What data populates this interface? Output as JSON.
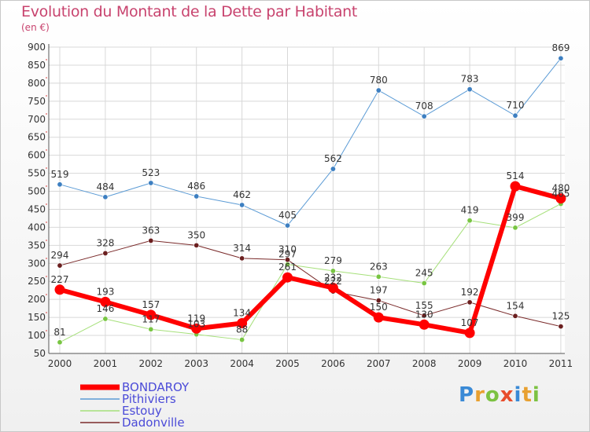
{
  "chart_data": {
    "type": "line",
    "title": "Evolution du Montant de la Dette par Habitant",
    "subtitle": "(en €)",
    "x": [
      "2000",
      "2001",
      "2002",
      "2003",
      "2004",
      "2005",
      "2006",
      "2007",
      "2008",
      "2009",
      "2010",
      "2011"
    ],
    "yticks": [
      50,
      100,
      150,
      200,
      250,
      300,
      350,
      400,
      450,
      500,
      550,
      600,
      650,
      700,
      750,
      800,
      850,
      900
    ],
    "ylim": [
      50,
      900
    ],
    "grid": true,
    "legend_position": "bottom-left",
    "series": [
      {
        "name": "Pithiviers",
        "color": "#5b9bd5",
        "marker": "#3d7fc1",
        "width": 1,
        "values": [
          519,
          484,
          523,
          486,
          462,
          405,
          562,
          780,
          708,
          783,
          710,
          869
        ]
      },
      {
        "name": "Estouy",
        "color": "#a6e07a",
        "marker": "#78c542",
        "width": 1,
        "values": [
          81,
          146,
          117,
          103,
          88,
          297,
          279,
          263,
          245,
          419,
          399,
          465
        ]
      },
      {
        "name": "Dadonville",
        "color": "#7a2a2a",
        "marker": "#6b1f1f",
        "width": 1,
        "values": [
          294,
          328,
          363,
          350,
          314,
          310,
          222,
          197,
          155,
          192,
          154,
          125
        ]
      },
      {
        "name": "BONDAROY",
        "color": "#ff0000",
        "marker": "#ff0000",
        "width": 6,
        "values": [
          227,
          193,
          157,
          119,
          134,
          261,
          232,
          150,
          130,
          107,
          514,
          480
        ]
      }
    ],
    "legend_order": [
      "BONDAROY",
      "Pithiviers",
      "Estouy",
      "Dadonville"
    ]
  },
  "brand": {
    "letters": [
      "P",
      "r",
      "o",
      "x",
      "i",
      "t",
      "i"
    ],
    "colors": [
      "#3a8ad6",
      "#e8a030",
      "#7cc242",
      "#e84d2c",
      "#3a8ad6",
      "#e8a030",
      "#7cc242"
    ]
  }
}
